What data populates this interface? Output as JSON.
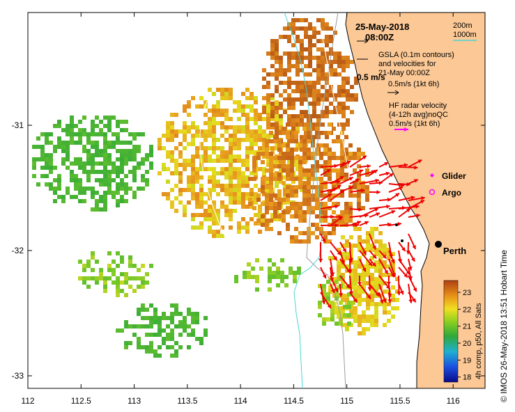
{
  "title": {
    "date": "25-May-2018",
    "time": "08:00Z"
  },
  "depth_legend": {
    "contour_200": "200m",
    "contour_1000": "1000m",
    "color_200": "#9a9a9a",
    "color_1000": "#46d6d6"
  },
  "legend": {
    "gsla_line1": "GSLA (0.1m contours)",
    "gsla_line2": "and velocities for",
    "gsla_line3": "21-May 00:00Z",
    "gsla_scale": "0.5m/s (1kt 6h)",
    "overlay_scale": "0.5 m/s",
    "hf_line1": "HF radar velocity",
    "hf_line2": "(4-12h avg)noQC",
    "hf_scale": "0.5m/s (1kt 6h)",
    "glider": "Glider",
    "argo": "Argo",
    "hf_color": "#ff00ff"
  },
  "places": {
    "city": "Perth"
  },
  "axes": {
    "x_ticks": [
      "112",
      "112.5",
      "113",
      "113.5",
      "114",
      "114.5",
      "115",
      "115.5",
      "116"
    ],
    "x_values": [
      112,
      112.5,
      113,
      113.5,
      114,
      114.5,
      115,
      115.5,
      116
    ],
    "y_ticks": [
      "-31",
      "-32",
      "-33"
    ],
    "y_values": [
      -31,
      -32,
      -33
    ],
    "lon_range": [
      112,
      116.3
    ],
    "lat_range": [
      -33.1,
      -30.1
    ]
  },
  "colorbar": {
    "label": "4h comp, p50, All Sats",
    "ticks": [
      "23",
      "22",
      "21",
      "20",
      "19",
      "18"
    ],
    "values": [
      23,
      22,
      21,
      20,
      19,
      18
    ],
    "range": [
      17.7,
      23.7
    ]
  },
  "credit": "© IMOS 26-May-2018 13:51 Hobart Time",
  "colors": {
    "land": "#fbc896",
    "sst_cool": "#2ea83a",
    "sst_warm": "#c8641e",
    "radar_arrow": "#ee0000"
  }
}
